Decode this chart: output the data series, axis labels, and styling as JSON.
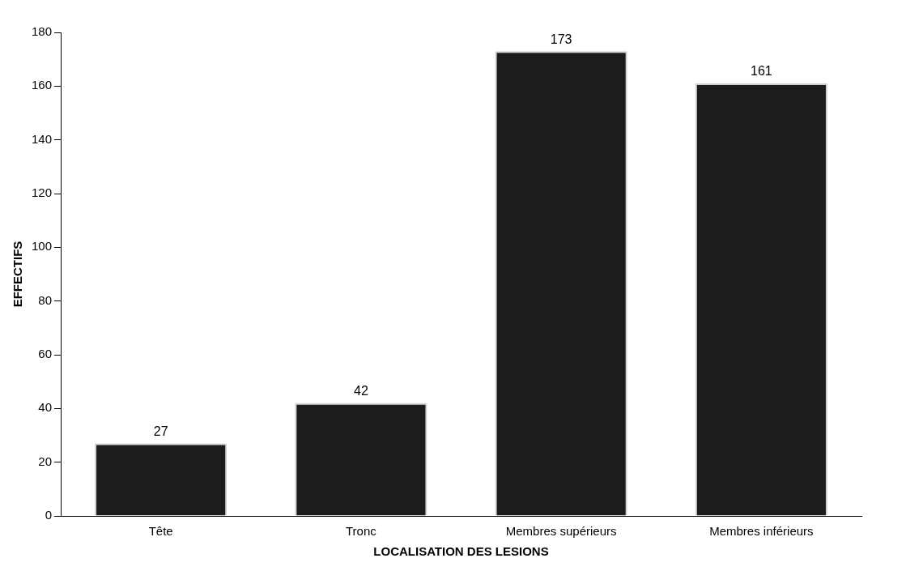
{
  "chart_data": {
    "type": "bar",
    "xlabel": "LOCALISATION DES LESIONS",
    "ylabel": "EFFECTIFS",
    "categories": [
      "Tête",
      "Tronc",
      "Membres supérieurs",
      "Membres inférieurs"
    ],
    "values": [
      27,
      42,
      173,
      161
    ],
    "color": "#1c1c1c",
    "ylim": [
      0,
      180
    ],
    "yticks": [
      0,
      20,
      40,
      60,
      80,
      100,
      120,
      140,
      160,
      180
    ],
    "data_labels": true,
    "grid": false,
    "legend": false
  }
}
